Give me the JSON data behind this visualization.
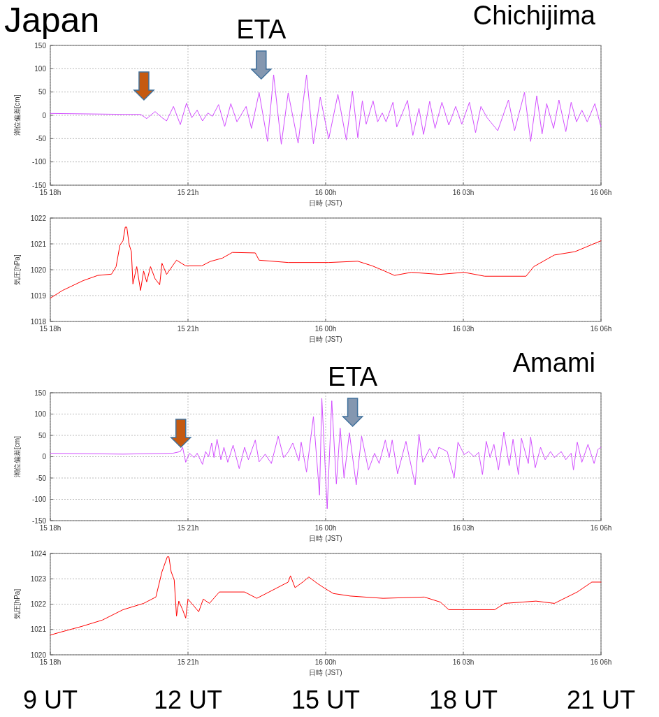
{
  "chart_data": [
    {
      "type": "line",
      "title": "Chichijima",
      "annotations": [
        "Japan",
        "ETA"
      ],
      "xlabel": "日時 (JST)",
      "ylabel": "潮位偏差[cm]",
      "xlim": [
        "--01-15T18:00",
        "--01-16T06:00"
      ],
      "xticks": [
        {
          "value": "--01-15T18:00",
          "label": "15 18h"
        },
        {
          "value": "--01-15T21:00",
          "label": "15 21h"
        },
        {
          "value": "--01-16T00:00",
          "label": "16 00h"
        },
        {
          "value": "--01-16T03:00",
          "label": "16 03h"
        },
        {
          "value": "--01-16T06:00",
          "label": "16 06h"
        }
      ],
      "ylim": [
        -150,
        150
      ],
      "yticks": [
        -150,
        -100,
        -50,
        0,
        50,
        100,
        150
      ],
      "grid": true,
      "series": [
        {
          "color": "#d24dff",
          "x": [
            "--01-15T18:00",
            "--01-15T19:36",
            "--01-15T19:58",
            "--01-15T20:06",
            "--01-15T20:17",
            "--01-15T20:26",
            "--01-15T20:32",
            "--01-15T20:41",
            "--01-15T20:50",
            "--01-15T20:58",
            "--01-15T21:05",
            "--01-15T21:12",
            "--01-15T21:19",
            "--01-15T21:26",
            "--01-15T21:32",
            "--01-15T21:40",
            "--01-15T21:48",
            "--01-15T21:56",
            "--01-15T22:04",
            "--01-15T22:16",
            "--01-15T22:23",
            "--01-15T22:33",
            "--01-15T22:44",
            "--01-15T22:52",
            "--01-15T23:02",
            "--01-15T23:11",
            "--01-15T23:24",
            "--01-15T23:35",
            "--01-15T23:44",
            "--01-15T23:53",
            "--01-16T00:04",
            "--01-16T00:16",
            "--01-16T00:27",
            "--01-16T00:35",
            "--01-16T00:42",
            "--01-16T00:48",
            "--01-16T00:53",
            "--01-16T01:02",
            "--01-16T01:08",
            "--01-16T01:14",
            "--01-16T01:19",
            "--01-16T01:28",
            "--01-16T01:33",
            "--01-16T01:47",
            "--01-16T01:54",
            "--01-16T02:02",
            "--01-16T02:08",
            "--01-16T02:16",
            "--01-16T02:23",
            "--01-16T02:32",
            "--01-16T02:41",
            "--01-16T02:50",
            "--01-16T02:58",
            "--01-16T03:08",
            "--01-16T03:16",
            "--01-16T03:23",
            "--01-16T03:31",
            "--01-16T03:45",
            "--01-16T03:59",
            "--01-16T04:07",
            "--01-16T04:20",
            "--01-16T04:28",
            "--01-16T04:36",
            "--01-16T04:43",
            "--01-16T04:49",
            "--01-16T04:58",
            "--01-16T05:05",
            "--01-16T05:14",
            "--01-16T05:21",
            "--01-16T05:28",
            "--01-16T05:35",
            "--01-16T05:42",
            "--01-16T05:52",
            "--01-16T06:00"
          ],
          "values": [
            4,
            2,
            2,
            -7,
            8,
            -5,
            -12,
            19,
            -20,
            26,
            -5,
            11,
            -12,
            5,
            -2,
            23,
            -24,
            25,
            -14,
            19,
            -28,
            49,
            -56,
            87,
            -62,
            48,
            -60,
            87,
            -61,
            39,
            -51,
            45,
            -53,
            52,
            -48,
            31,
            -19,
            31,
            -14,
            5,
            -14,
            28,
            -25,
            32,
            -43,
            15,
            -41,
            30,
            -28,
            28,
            -21,
            19,
            -19,
            28,
            -37,
            19,
            -5,
            -33,
            33,
            -33,
            49,
            -56,
            42,
            -40,
            25,
            -28,
            33,
            -35,
            28,
            -14,
            11,
            -14,
            25,
            -25
          ]
        }
      ]
    },
    {
      "type": "line",
      "xlabel": "日時 (JST)",
      "ylabel": "気圧[hPa]",
      "xlim": [
        "--01-15T18:00",
        "--01-16T06:00"
      ],
      "xticks": [
        {
          "value": "--01-15T18:00",
          "label": "15 18h"
        },
        {
          "value": "--01-15T21:00",
          "label": "15 21h"
        },
        {
          "value": "--01-16T00:00",
          "label": "16 00h"
        },
        {
          "value": "--01-16T03:00",
          "label": "16 03h"
        },
        {
          "value": "--01-16T06:00",
          "label": "16 06h"
        }
      ],
      "ylim": [
        1018,
        1022
      ],
      "yticks": [
        1018,
        1019,
        1020,
        1021,
        1022
      ],
      "grid": true,
      "series": [
        {
          "color": "#ff0000",
          "x": [
            "--01-15T18:00",
            "--01-15T18:16",
            "--01-15T18:43",
            "--01-15T19:02",
            "--01-15T19:20",
            "--01-15T19:26",
            "--01-15T19:31",
            "--01-15T19:35",
            "--01-15T19:38",
            "--01-15T19:40",
            "--01-15T19:43",
            "--01-15T19:46",
            "--01-15T19:48",
            "--01-15T19:53",
            "--01-15T19:58",
            "--01-15T20:02",
            "--01-15T20:06",
            "--01-15T20:11",
            "--01-15T20:17",
            "--01-15T20:23",
            "--01-15T20:26",
            "--01-15T20:32",
            "--01-15T20:45",
            "--01-15T20:57",
            "--01-15T21:18",
            "--01-15T21:29",
            "--01-15T21:45",
            "--01-15T21:58",
            "--01-15T22:28",
            "--01-15T22:33",
            "--01-15T23:11",
            "--01-16T00:04",
            "--01-16T00:42",
            "--01-16T01:01",
            "--01-16T01:17",
            "--01-16T01:30",
            "--01-16T01:52",
            "--01-16T02:29",
            "--01-16T03:01",
            "--01-16T03:28",
            "--01-16T04:22",
            "--01-16T04:32",
            "--01-16T04:59",
            "--01-16T05:26",
            "--01-16T06:00"
          ],
          "values": [
            1018.9,
            1019.2,
            1019.58,
            1019.78,
            1019.83,
            1020.12,
            1020.95,
            1021.12,
            1021.65,
            1021.65,
            1020.98,
            1020.7,
            1019.45,
            1020.12,
            1019.2,
            1019.95,
            1019.53,
            1020.12,
            1019.65,
            1019.42,
            1020.25,
            1019.82,
            1020.37,
            1020.15,
            1020.15,
            1020.32,
            1020.45,
            1020.67,
            1020.65,
            1020.37,
            1020.28,
            1020.28,
            1020.33,
            1020.15,
            1019.95,
            1019.78,
            1019.9,
            1019.82,
            1019.9,
            1019.75,
            1019.75,
            1020.12,
            1020.57,
            1020.7,
            1021.12
          ]
        }
      ]
    },
    {
      "type": "line",
      "title": "Amami",
      "annotations": [
        "ETA"
      ],
      "xlabel": "日時 (JST)",
      "ylabel": "潮位偏差[cm]",
      "xlim": [
        "--01-15T18:00",
        "--01-16T06:00"
      ],
      "xticks": [
        {
          "value": "--01-15T18:00",
          "label": "15 18h"
        },
        {
          "value": "--01-15T21:00",
          "label": "15 21h"
        },
        {
          "value": "--01-16T00:00",
          "label": "16 00h"
        },
        {
          "value": "--01-16T03:00",
          "label": "16 03h"
        },
        {
          "value": "--01-16T06:00",
          "label": "16 06h"
        }
      ],
      "ylim": [
        -150,
        150
      ],
      "yticks": [
        -150,
        -100,
        -50,
        0,
        50,
        100,
        150
      ],
      "grid": true,
      "series": [
        {
          "color": "#d24dff",
          "x": [
            "--01-15T18:00",
            "--01-15T19:35",
            "--01-15T20:40",
            "--01-15T20:50",
            "--01-15T20:53",
            "--01-15T20:57",
            "--01-15T21:02",
            "--01-15T21:08",
            "--01-15T21:12",
            "--01-15T21:19",
            "--01-15T21:23",
            "--01-15T21:27",
            "--01-15T21:31",
            "--01-15T21:34",
            "--01-15T21:38",
            "--01-15T21:43",
            "--01-15T21:47",
            "--01-15T21:52",
            "--01-15T21:59",
            "--01-15T22:07",
            "--01-15T22:14",
            "--01-15T22:19",
            "--01-15T22:28",
            "--01-15T22:33",
            "--01-15T22:41",
            "--01-15T22:49",
            "--01-15T22:58",
            "--01-15T23:05",
            "--01-15T23:11",
            "--01-15T23:17",
            "--01-15T23:25",
            "--01-15T23:28",
            "--01-15T23:35",
            "--01-15T23:44",
            "--01-15T23:52",
            "--01-15T23:55",
            "--01-16T00:02",
            "--01-16T00:08",
            "--01-16T00:14",
            "--01-16T00:19",
            "--01-16T00:24",
            "--01-16T00:31",
            "--01-16T00:40",
            "--01-16T00:47",
            "--01-16T00:56",
            "--01-16T01:04",
            "--01-16T01:10",
            "--01-16T01:18",
            "--01-16T01:23",
            "--01-16T01:27",
            "--01-16T01:34",
            "--01-16T01:45",
            "--01-16T01:57",
            "--01-16T02:02",
            "--01-16T02:07",
            "--01-16T02:16",
            "--01-16T02:23",
            "--01-16T02:28",
            "--01-16T02:39",
            "--01-16T02:48",
            "--01-16T02:53",
            "--01-16T03:01",
            "--01-16T03:07",
            "--01-16T03:14",
            "--01-16T03:20",
            "--01-16T03:25",
            "--01-16T03:30",
            "--01-16T03:35",
            "--01-16T03:40",
            "--01-16T03:46",
            "--01-16T03:53",
            "--01-16T04:00",
            "--01-16T04:05",
            "--01-16T04:12",
            "--01-16T04:16",
            "--01-16T04:25",
            "--01-16T04:28",
            "--01-16T04:34",
            "--01-16T04:41",
            "--01-16T04:47",
            "--01-16T04:54",
            "--01-16T04:59",
            "--01-16T05:08",
            "--01-16T05:14",
            "--01-16T05:21",
            "--01-16T05:24",
            "--01-16T05:29",
            "--01-16T05:35",
            "--01-16T05:43",
            "--01-16T05:51",
            "--01-16T05:56",
            "--01-16T06:00"
          ],
          "values": [
            8,
            6,
            8,
            12,
            22,
            -13,
            8,
            -2,
            8,
            -18,
            12,
            0,
            32,
            -2,
            41,
            -7,
            22,
            -13,
            27,
            -28,
            22,
            -7,
            39,
            -12,
            6,
            -16,
            48,
            -2,
            11,
            32,
            -10,
            34,
            -36,
            94,
            -90,
            137,
            -122,
            131,
            -64,
            67,
            -50,
            56,
            -66,
            48,
            -31,
            8,
            -16,
            39,
            -2,
            39,
            -40,
            36,
            -66,
            53,
            -13,
            19,
            -5,
            22,
            12,
            -50,
            34,
            5,
            12,
            0,
            10,
            -42,
            36,
            -2,
            29,
            -31,
            58,
            -21,
            41,
            -42,
            43,
            -16,
            46,
            -26,
            22,
            -7,
            12,
            -2,
            12,
            -7,
            8,
            -31,
            34,
            -13,
            29,
            -16,
            17,
            22
          ]
        }
      ]
    },
    {
      "type": "line",
      "xlabel": "日時 (JST)",
      "ylabel": "気圧[hPa]",
      "xlim": [
        "--01-15T18:00",
        "--01-16T06:00"
      ],
      "xticks": [
        {
          "value": "--01-15T18:00",
          "label": "15 18h"
        },
        {
          "value": "--01-15T21:00",
          "label": "15 21h"
        },
        {
          "value": "--01-16T00:00",
          "label": "16 00h"
        },
        {
          "value": "--01-16T03:00",
          "label": "16 03h"
        },
        {
          "value": "--01-16T06:00",
          "label": "16 06h"
        }
      ],
      "ylim": [
        1020,
        1024
      ],
      "yticks": [
        1020,
        1021,
        1022,
        1023,
        1024
      ],
      "grid": true,
      "x2lim": [
        9,
        21
      ],
      "x2ticks": [
        {
          "value": 9,
          "label": "9 UT"
        },
        {
          "value": 12,
          "label": "12 UT"
        },
        {
          "value": 15,
          "label": "15 UT"
        },
        {
          "value": 18,
          "label": "18 UT"
        },
        {
          "value": 21,
          "label": "21 UT"
        }
      ],
      "series": [
        {
          "color": "#ff0000",
          "x": [
            "--01-15T18:00",
            "--01-15T18:14",
            "--01-15T18:41",
            "--01-15T19:08",
            "--01-15T19:35",
            "--01-15T20:02",
            "--01-15T20:18",
            "--01-15T20:26",
            "--01-15T20:33",
            "--01-15T20:35",
            "--01-15T20:38",
            "--01-15T20:42",
            "--01-15T20:45",
            "--01-15T20:48",
            "--01-15T20:53",
            "--01-15T20:57",
            "--01-15T21:00",
            "--01-15T21:07",
            "--01-15T21:14",
            "--01-15T21:20",
            "--01-15T21:28",
            "--01-15T21:41",
            "--01-15T22:14",
            "--01-15T22:30",
            "--01-15T22:55",
            "--01-15T23:11",
            "--01-15T23:14",
            "--01-15T23:20",
            "--01-15T23:30",
            "--01-15T23:38",
            "--01-15T23:49",
            "--01-15T23:59",
            "--01-16T00:10",
            "--01-16T00:32",
            "--01-16T01:15",
            "--01-16T02:09",
            "--01-16T02:30",
            "--01-16T02:41",
            "--01-16T03:41",
            "--01-16T03:54",
            "--01-16T04:35",
            "--01-16T04:59",
            "--01-16T05:29",
            "--01-16T05:48",
            "--01-16T06:00"
          ],
          "values": [
            1020.78,
            1020.9,
            1021.12,
            1021.37,
            1021.78,
            1022.03,
            1022.28,
            1023.28,
            1023.87,
            1023.87,
            1023.28,
            1022.95,
            1021.53,
            1022.12,
            1021.78,
            1021.45,
            1022.2,
            1021.95,
            1021.7,
            1022.2,
            1022.03,
            1022.48,
            1022.48,
            1022.23,
            1022.62,
            1022.87,
            1023.12,
            1022.65,
            1022.87,
            1023.07,
            1022.82,
            1022.62,
            1022.42,
            1022.32,
            1022.23,
            1022.28,
            1022.08,
            1021.78,
            1021.78,
            1022.03,
            1022.12,
            1022.03,
            1022.48,
            1022.87,
            1022.87
          ]
        }
      ]
    }
  ]
}
